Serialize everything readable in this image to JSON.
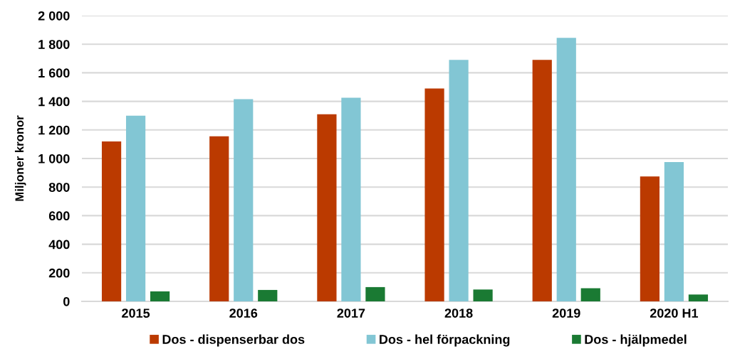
{
  "chart_data": {
    "type": "bar",
    "ylabel": "Miljoner kronor",
    "categories": [
      "2015",
      "2016",
      "2017",
      "2018",
      "2019",
      "2020 H1"
    ],
    "series": [
      {
        "name": "Dos - dispenserbar dos",
        "color": "#bb3a00",
        "values": [
          1120,
          1155,
          1310,
          1490,
          1690,
          875
        ]
      },
      {
        "name": "Dos - hel förpackning",
        "color": "#82c6d4",
        "values": [
          1300,
          1415,
          1425,
          1690,
          1845,
          975
        ]
      },
      {
        "name": "Dos - hjälpmedel",
        "color": "#1a7a33",
        "values": [
          70,
          80,
          100,
          83,
          92,
          48
        ]
      }
    ],
    "ylim": [
      0,
      2000
    ],
    "yticks": [
      0,
      200,
      400,
      600,
      800,
      {
        "value": 1000,
        "label": "1 000"
      },
      {
        "value": 1200,
        "label": "1 200"
      },
      {
        "value": 1400,
        "label": "1 400"
      },
      {
        "value": 1600,
        "label": "1 600"
      },
      {
        "value": 1800,
        "label": "1 800"
      },
      {
        "value": 2000,
        "label": "2 000"
      }
    ],
    "grid": "y",
    "legend": "bottom"
  }
}
